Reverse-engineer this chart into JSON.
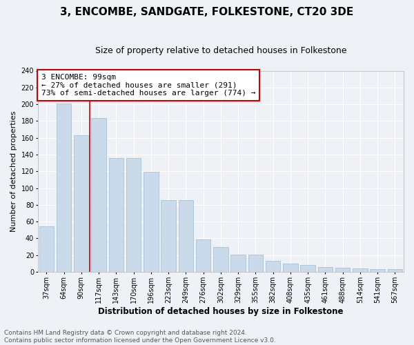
{
  "title": "3, ENCOMBE, SANDGATE, FOLKESTONE, CT20 3DE",
  "subtitle": "Size of property relative to detached houses in Folkestone",
  "xlabel": "Distribution of detached houses by size in Folkestone",
  "ylabel": "Number of detached properties",
  "categories": [
    "37sqm",
    "64sqm",
    "90sqm",
    "117sqm",
    "143sqm",
    "170sqm",
    "196sqm",
    "223sqm",
    "249sqm",
    "276sqm",
    "302sqm",
    "329sqm",
    "355sqm",
    "382sqm",
    "408sqm",
    "435sqm",
    "461sqm",
    "488sqm",
    "514sqm",
    "541sqm",
    "567sqm"
  ],
  "values": [
    54,
    201,
    163,
    184,
    136,
    136,
    119,
    86,
    86,
    39,
    30,
    21,
    21,
    13,
    10,
    8,
    6,
    5,
    4,
    3,
    3
  ],
  "bar_color": "#c9daea",
  "bar_edge_color": "#a8c0d6",
  "red_line_index": 2,
  "annotation_text_line1": "3 ENCOMBE: 99sqm",
  "annotation_text_line2": "← 27% of detached houses are smaller (291)",
  "annotation_text_line3": "73% of semi-detached houses are larger (774) →",
  "annotation_box_facecolor": "#ffffff",
  "annotation_box_edgecolor": "#cc0000",
  "ylim": [
    0,
    240
  ],
  "yticks": [
    0,
    20,
    40,
    60,
    80,
    100,
    120,
    140,
    160,
    180,
    200,
    220,
    240
  ],
  "footer_line1": "Contains HM Land Registry data © Crown copyright and database right 2024.",
  "footer_line2": "Contains public sector information licensed under the Open Government Licence v3.0.",
  "background_color": "#eef2f7",
  "grid_color": "#ffffff",
  "title_fontsize": 11,
  "subtitle_fontsize": 9,
  "xlabel_fontsize": 8.5,
  "ylabel_fontsize": 8,
  "tick_fontsize": 7,
  "annotation_fontsize": 8,
  "footer_fontsize": 6.5
}
